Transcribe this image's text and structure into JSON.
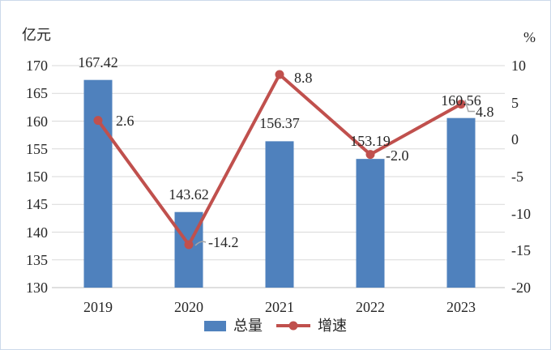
{
  "chart_data": {
    "type": "bar-line-combo",
    "categories": [
      "2019",
      "2020",
      "2021",
      "2022",
      "2023"
    ],
    "series": [
      {
        "name": "总量",
        "chart": "bar",
        "axis": "left",
        "color": "#4f81bd",
        "values": [
          167.42,
          143.62,
          156.37,
          153.19,
          160.56
        ],
        "labels": [
          "167.42",
          "143.62",
          "156.37",
          "153.19",
          "160.56"
        ]
      },
      {
        "name": "增速",
        "chart": "line",
        "axis": "right",
        "color": "#c0504d",
        "values": [
          2.6,
          -14.2,
          8.8,
          -2.0,
          4.8
        ],
        "labels": [
          "2.6",
          "-14.2",
          "8.8",
          "-2.0",
          "4.8"
        ]
      }
    ],
    "left_axis": {
      "title": "亿元",
      "min": 130,
      "max": 170,
      "step": 5,
      "ticks": [
        "170",
        "165",
        "160",
        "155",
        "150",
        "145",
        "140",
        "135",
        "130"
      ]
    },
    "right_axis": {
      "title": "%",
      "min": -20,
      "max": 10,
      "step": 5,
      "ticks": [
        "10",
        "5",
        "0",
        "-5",
        "-10",
        "-15",
        "-20"
      ]
    },
    "legend_position": "bottom",
    "grid": true
  },
  "colors": {
    "grid": "#d9d9d9",
    "axis_line": "#bfbfbf",
    "leader": "#a6a6a6",
    "text": "#262626",
    "border": "#ccd9ea",
    "background": "#ffffff"
  }
}
